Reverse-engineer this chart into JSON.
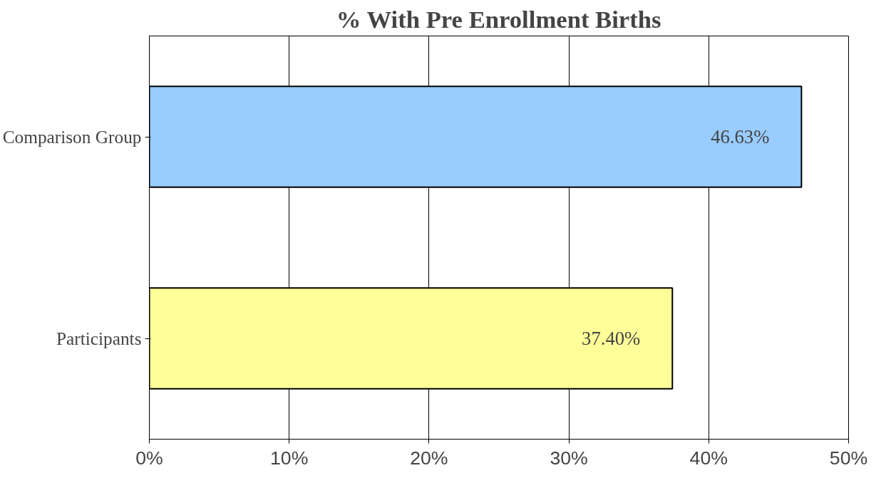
{
  "chart_data": {
    "type": "bar",
    "orientation": "horizontal",
    "title": "% With Pre Enrollment Births",
    "categories": [
      "Comparison Group",
      "Participants"
    ],
    "values": [
      46.63,
      37.4
    ],
    "colors": [
      "#99ccff",
      "#ffff99"
    ],
    "value_labels": [
      "46.63%",
      "37.40%"
    ],
    "xlim": [
      0,
      50
    ],
    "xticks": [
      {
        "value": 0,
        "label": "0%"
      },
      {
        "value": 10,
        "label": "10%"
      },
      {
        "value": 20,
        "label": "20%"
      },
      {
        "value": 30,
        "label": "30%"
      },
      {
        "value": 40,
        "label": "40%"
      },
      {
        "value": 50,
        "label": "50%"
      }
    ],
    "grid": "x"
  }
}
